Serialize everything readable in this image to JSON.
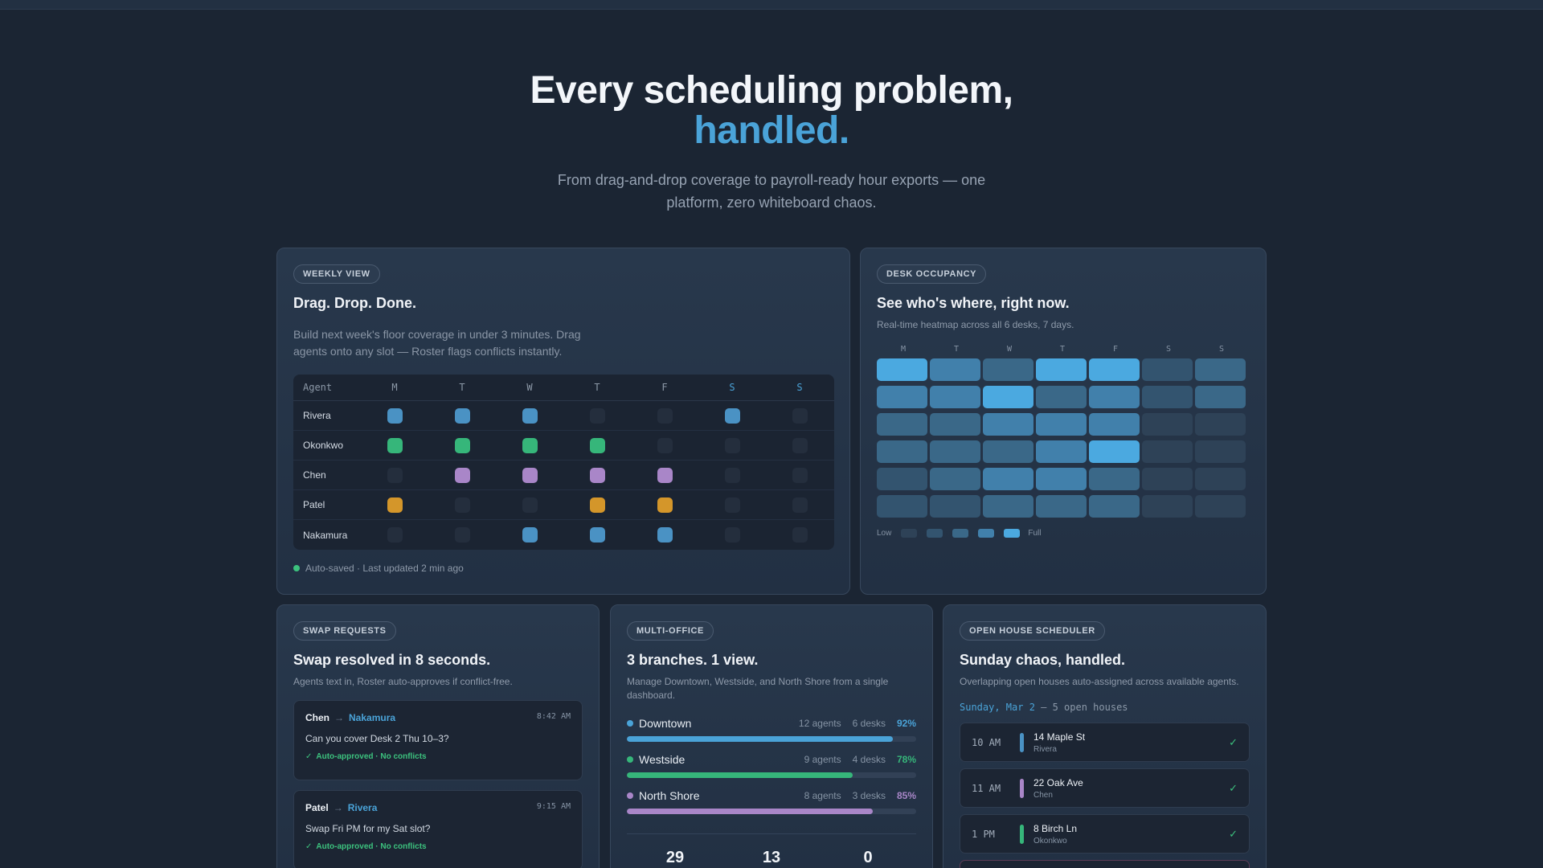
{
  "hero": {
    "title_line1": "Every scheduling problem,",
    "title_line2": "handled.",
    "subtitle": "From drag-and-drop coverage to payroll-ready hour exports — one platform, zero whiteboard chaos."
  },
  "weekly": {
    "pill": "WEEKLY VIEW",
    "title": "Drag. Drop. Done.",
    "desc": "Build next week's floor coverage in under 3 minutes. Drag agents onto any slot — Roster flags conflicts instantly.",
    "col_agent": "Agent",
    "days": [
      "M",
      "T",
      "W",
      "T",
      "F",
      "S",
      "S"
    ],
    "rows": [
      {
        "name": "Rivera",
        "color": "#4a92c4",
        "slots": [
          1,
          1,
          1,
          0,
          0,
          1,
          0
        ]
      },
      {
        "name": "Okonkwo",
        "color": "#36b67a",
        "slots": [
          1,
          1,
          1,
          1,
          0,
          0,
          0
        ]
      },
      {
        "name": "Chen",
        "color": "#a986c8",
        "slots": [
          0,
          1,
          1,
          1,
          1,
          0,
          0
        ]
      },
      {
        "name": "Patel",
        "color": "#d4962a",
        "slots": [
          1,
          0,
          0,
          1,
          1,
          0,
          0
        ]
      },
      {
        "name": "Nakamura",
        "color": "#4a92c4",
        "slots": [
          0,
          0,
          1,
          1,
          1,
          0,
          0
        ]
      }
    ],
    "status": "Auto-saved · Last updated 2 min ago",
    "status_color": "#3cc27e"
  },
  "occupancy": {
    "pill": "DESK OCCUPANCY",
    "title": "See who's where, right now.",
    "desc": "Real-time heatmap across all 6 desks, 7 days.",
    "days": [
      "M",
      "T",
      "W",
      "T",
      "F",
      "S",
      "S"
    ],
    "levels": [
      [
        5,
        4,
        3,
        5,
        5,
        2,
        3
      ],
      [
        4,
        4,
        5,
        3,
        4,
        2,
        3
      ],
      [
        3,
        3,
        4,
        4,
        4,
        1,
        1
      ],
      [
        3,
        3,
        3,
        4,
        5,
        1,
        1
      ],
      [
        2,
        3,
        4,
        4,
        3,
        1,
        1
      ],
      [
        2,
        2,
        3,
        3,
        3,
        1,
        1
      ]
    ],
    "legend_low": "Low",
    "legend_full": "Full",
    "level_colors": [
      "#2a3646",
      "#2e4257",
      "#33546f",
      "#3a6888",
      "#4180ab",
      "#4ba9e0"
    ]
  },
  "swap": {
    "pill": "SWAP REQUESTS",
    "title": "Swap resolved in 8 seconds.",
    "desc": "Agents text in, Roster auto-approves if conflict-free.",
    "messages": [
      {
        "from": "Chen",
        "to": "Nakamura",
        "time": "8:42 AM",
        "text": "Can you cover Desk 2 Thu 10–3?",
        "status": "Auto-approved · No conflicts"
      },
      {
        "from": "Patel",
        "to": "Rivera",
        "time": "9:15 AM",
        "text": "Swap Fri PM for my Sat slot?",
        "status": "Auto-approved · No conflicts"
      }
    ]
  },
  "multi": {
    "pill": "MULTI-OFFICE",
    "title": "3 branches. 1 view.",
    "desc": "Manage Downtown, Westside, and North Shore from a single dashboard.",
    "branches": [
      {
        "name": "Downtown",
        "agents": "12 agents",
        "desks": "6 desks",
        "pct": "92%",
        "value": 0.92,
        "color": "#4aa3d8"
      },
      {
        "name": "Westside",
        "agents": "9 agents",
        "desks": "4 desks",
        "pct": "78%",
        "value": 0.78,
        "color": "#36b67a"
      },
      {
        "name": "North Shore",
        "agents": "8 agents",
        "desks": "3 desks",
        "pct": "85%",
        "value": 0.85,
        "color": "#a986c8"
      }
    ],
    "stats": [
      "29",
      "13",
      "0"
    ]
  },
  "openhouse": {
    "pill": "OPEN HOUSE SCHEDULER",
    "title": "Sunday chaos, handled.",
    "desc": "Overlapping open houses auto-assigned across available agents.",
    "date": "Sunday, Mar 2",
    "date_rest": " — 5 open houses",
    "slots": [
      {
        "time": "10 AM",
        "address": "14 Maple St",
        "agent": "Rivera",
        "color": "#4a92c4"
      },
      {
        "time": "11 AM",
        "address": "22 Oak Ave",
        "agent": "Chen",
        "color": "#a986c8"
      },
      {
        "time": "1 PM",
        "address": "8 Birch Ln",
        "agent": "Okonkwo",
        "color": "#36b67a"
      }
    ]
  }
}
